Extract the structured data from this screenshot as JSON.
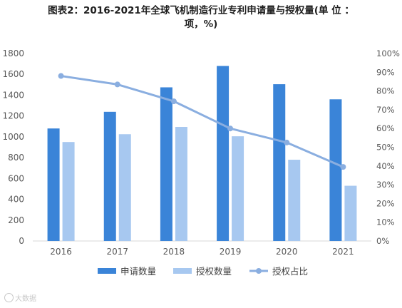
{
  "chart_data": {
    "type": "bar+line",
    "title_line1": "图表2：2016-2021年全球飞机制造行业专利申请量与授权量(单 位 ：",
    "title_line2": "项，%)",
    "categories": [
      "2016",
      "2017",
      "2018",
      "2019",
      "2020",
      "2021"
    ],
    "series": [
      {
        "name": "申请数量",
        "type": "bar",
        "axis": "left",
        "color": "#3a84d8",
        "values": [
          1080,
          1240,
          1475,
          1680,
          1505,
          1360
        ]
      },
      {
        "name": "授权数量",
        "type": "bar",
        "axis": "left",
        "color": "#a7c8f0",
        "values": [
          950,
          1025,
          1095,
          1005,
          780,
          530
        ]
      },
      {
        "name": "授权占比",
        "type": "line",
        "axis": "right",
        "color": "#8aaee0",
        "values": [
          88,
          83.5,
          74.5,
          60,
          52.5,
          39.5
        ]
      }
    ],
    "y_left": {
      "min": 0,
      "max": 1800,
      "ticks": [
        "0",
        "200",
        "400",
        "600",
        "800",
        "1000",
        "1200",
        "1400",
        "1600",
        "1800"
      ]
    },
    "y_right": {
      "min": 0,
      "max": 100,
      "ticks": [
        "0%",
        "10%",
        "20%",
        "30%",
        "40%",
        "50%",
        "60%",
        "70%",
        "80%",
        "90%",
        "100%"
      ]
    },
    "grid": false,
    "legend_position": "bottom"
  },
  "watermark": "大数据"
}
